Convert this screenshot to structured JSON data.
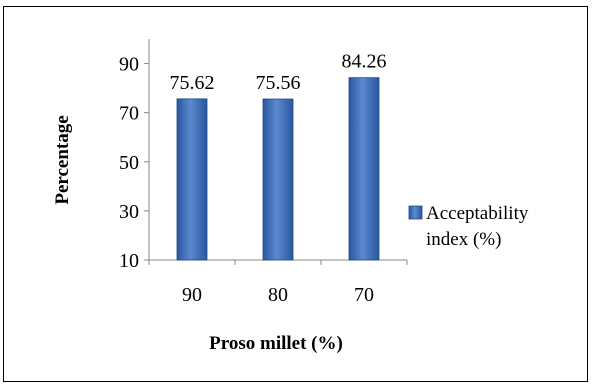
{
  "chart_data": {
    "type": "bar",
    "categories": [
      "90",
      "80",
      "70"
    ],
    "series": [
      {
        "name": "Acceptability index (%)",
        "values": [
          75.62,
          75.56,
          84.26
        ]
      }
    ],
    "data_labels": [
      "75.62",
      "75.56",
      "84.26"
    ],
    "xlabel": "Proso millet (%)",
    "ylabel": "Percentage",
    "ylim": [
      10,
      100
    ],
    "yticks": [
      "10",
      "30",
      "50",
      "70",
      "90"
    ],
    "legend": {
      "position": "right",
      "line1": "Acceptability",
      "line2": "index (%)"
    },
    "grid": false,
    "colors": {
      "bar_light": "#5b8ad0",
      "bar_mid": "#3c6fbf",
      "bar_dark": "#2a569e",
      "bar_edge": "#1e4a8c"
    }
  }
}
